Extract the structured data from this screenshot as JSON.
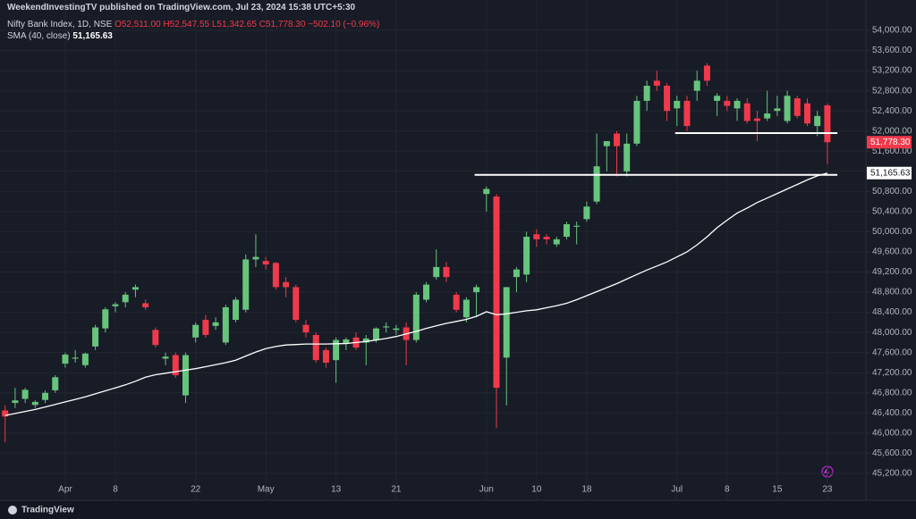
{
  "header": {
    "text": "WeekendInvestingTV published on TradingView.com, Jul 23, 2024 15:38 UTC+5:30"
  },
  "footer": {
    "logo": "TradingView"
  },
  "chart_data": {
    "type": "candlestick",
    "legend": {
      "name": "Nifty Bank Index, 1D, NSE",
      "open_label": "O52,511.00",
      "high_label": "H52,547.55",
      "low_label": "L51,342.65",
      "close_label": "C51,778.30",
      "change_label": "−502.10 (−0.96%)"
    },
    "up_color": "#67c47c",
    "down_color": "#f0394a",
    "categories": [
      null,
      null,
      null,
      null,
      null,
      null,
      "Apr",
      null,
      null,
      null,
      null,
      "8",
      null,
      null,
      null,
      null,
      null,
      null,
      null,
      "22",
      null,
      null,
      null,
      null,
      null,
      null,
      "May",
      null,
      null,
      null,
      null,
      null,
      null,
      "13",
      null,
      null,
      null,
      null,
      null,
      "21",
      null,
      null,
      null,
      null,
      null,
      null,
      null,
      null,
      "Jun",
      null,
      null,
      null,
      null,
      "10",
      null,
      null,
      null,
      null,
      "18",
      null,
      null,
      null,
      null,
      null,
      null,
      null,
      null,
      "Jul",
      null,
      null,
      null,
      null,
      "8",
      null,
      null,
      null,
      null,
      "15",
      null,
      null,
      null,
      null,
      "23"
    ],
    "open": [
      46450,
      46600,
      46680,
      46560,
      46660,
      46850,
      47380,
      47480,
      47350,
      47720,
      48080,
      48520,
      48600,
      48850,
      48580,
      48050,
      47480,
      47550,
      46750,
      47900,
      48250,
      48130,
      47800,
      48250,
      48450,
      49450,
      49420,
      49380,
      49000,
      48900,
      48150,
      47950,
      47650,
      47450,
      47780,
      47900,
      47800,
      47850,
      48100,
      48050,
      48100,
      47850,
      48650,
      49100,
      49300,
      48750,
      48300,
      48800,
      50750,
      50700,
      47500,
      49100,
      49150,
      49950,
      49900,
      49750,
      49900,
      50100,
      50250,
      50600,
      51700,
      51950,
      51200,
      51750,
      52600,
      53000,
      52900,
      52450,
      52600,
      52800,
      53300,
      52600,
      52600,
      52450,
      52550,
      52250,
      52250,
      52400,
      52200,
      52650,
      52550,
      52100,
      52511
    ],
    "high": [
      46550,
      46900,
      46900,
      46650,
      46850,
      47150,
      47600,
      47650,
      47600,
      48150,
      48500,
      48600,
      48800,
      48950,
      48650,
      48100,
      47600,
      47600,
      47600,
      48200,
      48350,
      48300,
      48550,
      48700,
      49550,
      49950,
      49500,
      49400,
      49100,
      48950,
      48250,
      48000,
      47700,
      47900,
      47900,
      48000,
      47950,
      48100,
      48200,
      48150,
      48200,
      48800,
      49000,
      49650,
      49400,
      48800,
      48700,
      48950,
      50900,
      50750,
      48900,
      49300,
      50000,
      50050,
      49950,
      49900,
      50200,
      50200,
      50600,
      51950,
      51800,
      52000,
      51950,
      52700,
      53000,
      53200,
      52950,
      52700,
      52700,
      53200,
      53350,
      52750,
      52700,
      52650,
      52650,
      52400,
      52800,
      52700,
      52800,
      52700,
      52650,
      52400,
      52547.55
    ],
    "low": [
      45820,
      46500,
      46600,
      46500,
      46600,
      46800,
      47300,
      47400,
      47300,
      47650,
      48000,
      48400,
      48500,
      48700,
      48450,
      47700,
      47350,
      47100,
      46600,
      47800,
      47900,
      48050,
      47750,
      48200,
      48400,
      49300,
      49250,
      48850,
      48700,
      48200,
      47900,
      47400,
      47300,
      47000,
      47650,
      47650,
      47350,
      47800,
      48000,
      47950,
      47350,
      47800,
      48600,
      49050,
      49000,
      48400,
      48200,
      48300,
      50400,
      46100,
      46550,
      48800,
      49000,
      49700,
      49750,
      49700,
      49850,
      49750,
      50200,
      50550,
      51200,
      51100,
      51100,
      51700,
      52400,
      52800,
      52200,
      52100,
      52000,
      52600,
      52900,
      52300,
      52400,
      52200,
      52150,
      51800,
      52200,
      52300,
      52150,
      52250,
      52100,
      51900,
      51342.65
    ],
    "close": [
      46330,
      46650,
      46860,
      46620,
      46800,
      47110,
      47560,
      47500,
      47580,
      48100,
      48460,
      48560,
      48750,
      48900,
      48500,
      47750,
      47520,
      47150,
      47550,
      48150,
      47950,
      48200,
      48500,
      48650,
      49450,
      49500,
      49350,
      48900,
      48900,
      48250,
      48000,
      47450,
      47400,
      47850,
      47860,
      47700,
      47880,
      48080,
      48120,
      48080,
      47850,
      48750,
      48950,
      49300,
      49100,
      48450,
      48650,
      48900,
      50850,
      46900,
      48900,
      49250,
      49900,
      49850,
      49850,
      49850,
      50150,
      50120,
      50500,
      51300,
      51800,
      51700,
      51750,
      52600,
      52900,
      52900,
      52400,
      52600,
      52100,
      53000,
      53000,
      52700,
      52500,
      52600,
      52200,
      52200,
      52350,
      52450,
      52700,
      52300,
      52150,
      52300,
      51778.3
    ],
    "last_close_label": "51,778.30",
    "sma": {
      "name": "SMA (40, close)",
      "color": "#ffffff",
      "value_label": "51,165.63",
      "values": [
        46350,
        46390,
        46430,
        46470,
        46520,
        46570,
        46620,
        46670,
        46720,
        46780,
        46840,
        46900,
        46960,
        47030,
        47110,
        47160,
        47190,
        47220,
        47250,
        47280,
        47320,
        47360,
        47400,
        47450,
        47530,
        47610,
        47680,
        47720,
        47750,
        47760,
        47770,
        47770,
        47770,
        47775,
        47780,
        47800,
        47820,
        47850,
        47880,
        47920,
        47970,
        48020,
        48080,
        48130,
        48180,
        48220,
        48260,
        48320,
        48410,
        48350,
        48370,
        48400,
        48430,
        48450,
        48490,
        48530,
        48580,
        48650,
        48730,
        48810,
        48890,
        48970,
        49060,
        49150,
        49240,
        49320,
        49400,
        49500,
        49600,
        49740,
        49900,
        50080,
        50230,
        50370,
        50470,
        50580,
        50670,
        50760,
        50850,
        50940,
        51030,
        51110,
        51165.63
      ]
    },
    "levels": [
      {
        "value": 51960,
        "start": 67,
        "end": 82
      },
      {
        "value": 51130,
        "start": 47,
        "end": 82
      }
    ],
    "ylim": [
      44880,
      54603
    ],
    "yticks": [
      {
        "value": 45200,
        "label": "45,200.00"
      },
      {
        "value": 45600,
        "label": "45,600.00"
      },
      {
        "value": 46000,
        "label": "46,000.00"
      },
      {
        "value": 46400,
        "label": "46,400.00"
      },
      {
        "value": 46800,
        "label": "46,800.00"
      },
      {
        "value": 47200,
        "label": "47,200.00"
      },
      {
        "value": 47600,
        "label": "47,600.00"
      },
      {
        "value": 48000,
        "label": "48,000.00"
      },
      {
        "value": 48400,
        "label": "48,400.00"
      },
      {
        "value": 48800,
        "label": "48,800.00"
      },
      {
        "value": 49200,
        "label": "49,200.00"
      },
      {
        "value": 49600,
        "label": "49,600.00"
      },
      {
        "value": 50000,
        "label": "50,000.00"
      },
      {
        "value": 50400,
        "label": "50,400.00"
      },
      {
        "value": 50800,
        "label": "50,800.00"
      },
      {
        "value": 51200,
        "label": "51,200.00"
      },
      {
        "value": 51600,
        "label": "51,600.00"
      },
      {
        "value": 52000,
        "label": "52,000.00"
      },
      {
        "value": 52400,
        "label": "52,400.00"
      },
      {
        "value": 52800,
        "label": "52,800.00"
      },
      {
        "value": 53200,
        "label": "53,200.00"
      },
      {
        "value": 53600,
        "label": "53,600.00"
      },
      {
        "value": 54000,
        "label": "54,000.00"
      }
    ],
    "grid": true
  }
}
